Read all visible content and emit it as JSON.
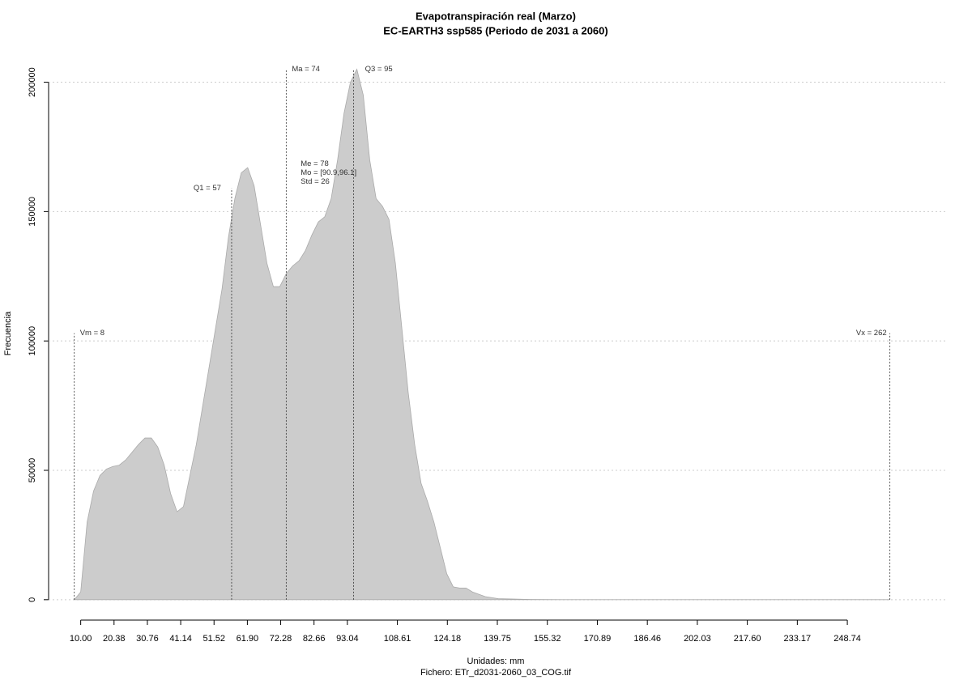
{
  "chart_data": {
    "type": "area",
    "title": "Evapotranspiración real (Marzo)",
    "subtitle": "EC-EARTH3 ssp585 (Periodo de 2031 a 2060)",
    "xlabel": "Unidades: mm",
    "caption": "Fichero: ETr_d2031-2060_03_COG.tif",
    "ylabel": "Frecuencia",
    "color": "#cccccc",
    "x": [
      8,
      10,
      12,
      14,
      16,
      18,
      20,
      22,
      24,
      26,
      28,
      30,
      32,
      34,
      36,
      38,
      40,
      42,
      44,
      46,
      48,
      50,
      52,
      54,
      56,
      58,
      60,
      62,
      64,
      66,
      68,
      70,
      72,
      74,
      76,
      78,
      80,
      82,
      84,
      86,
      88,
      90,
      92,
      94,
      96,
      98,
      100,
      102,
      104,
      106,
      108,
      110,
      112,
      114,
      116,
      118,
      120,
      122,
      124,
      126,
      128,
      130,
      132,
      136,
      140,
      150,
      160,
      262
    ],
    "values": [
      0,
      3000,
      30000,
      42000,
      48000,
      50500,
      51500,
      52000,
      54000,
      57000,
      60000,
      62500,
      62500,
      59000,
      52000,
      41000,
      34000,
      36000,
      48000,
      60000,
      75000,
      90000,
      105000,
      120000,
      140000,
      155000,
      165000,
      167000,
      160000,
      145000,
      130000,
      121000,
      121000,
      126000,
      129000,
      131000,
      135000,
      141000,
      146000,
      148000,
      155000,
      170000,
      188000,
      200000,
      205000,
      195000,
      170000,
      155000,
      152000,
      147000,
      130000,
      105000,
      80000,
      60000,
      45000,
      38000,
      30000,
      20000,
      10000,
      5000,
      4500,
      4500,
      3000,
      1200,
      400,
      100,
      0,
      0
    ],
    "xlim": [
      0,
      280
    ],
    "ylim": [
      -6000,
      213000
    ],
    "xticks": [
      {
        "value": 10,
        "label": "10.00"
      },
      20.38,
      30.76,
      41.14,
      51.52,
      {
        "value": 61.9,
        "label": "61.90"
      },
      72.28,
      82.66,
      93.04,
      108.61,
      124.18,
      139.75,
      155.32,
      170.89,
      186.46,
      202.03,
      {
        "value": 217.6,
        "label": "217.60"
      },
      233.17,
      248.74
    ],
    "yticks": [
      0,
      50000,
      100000,
      150000,
      200000
    ],
    "grid": true,
    "annotations": [
      {
        "text": "Vm = 8",
        "x": 8,
        "y": 103000
      },
      {
        "text": "Q1 = 57",
        "x": 57,
        "y": 159000
      },
      {
        "text": "Ma = 74",
        "x": 74,
        "y": 205000
      },
      {
        "text": "Q3 = 95",
        "x": 95,
        "y": 205000
      },
      {
        "text": "Vx = 262",
        "x": 262,
        "y": 103000
      }
    ],
    "stats": [
      {
        "text": "Me = 78",
        "x": 78.5,
        "y": 168500
      },
      {
        "text": "Mo = [90.9,96.1]",
        "x": 78.5,
        "y": 165000
      },
      {
        "text": "Std = 26",
        "x": 78.5,
        "y": 161500
      }
    ]
  }
}
